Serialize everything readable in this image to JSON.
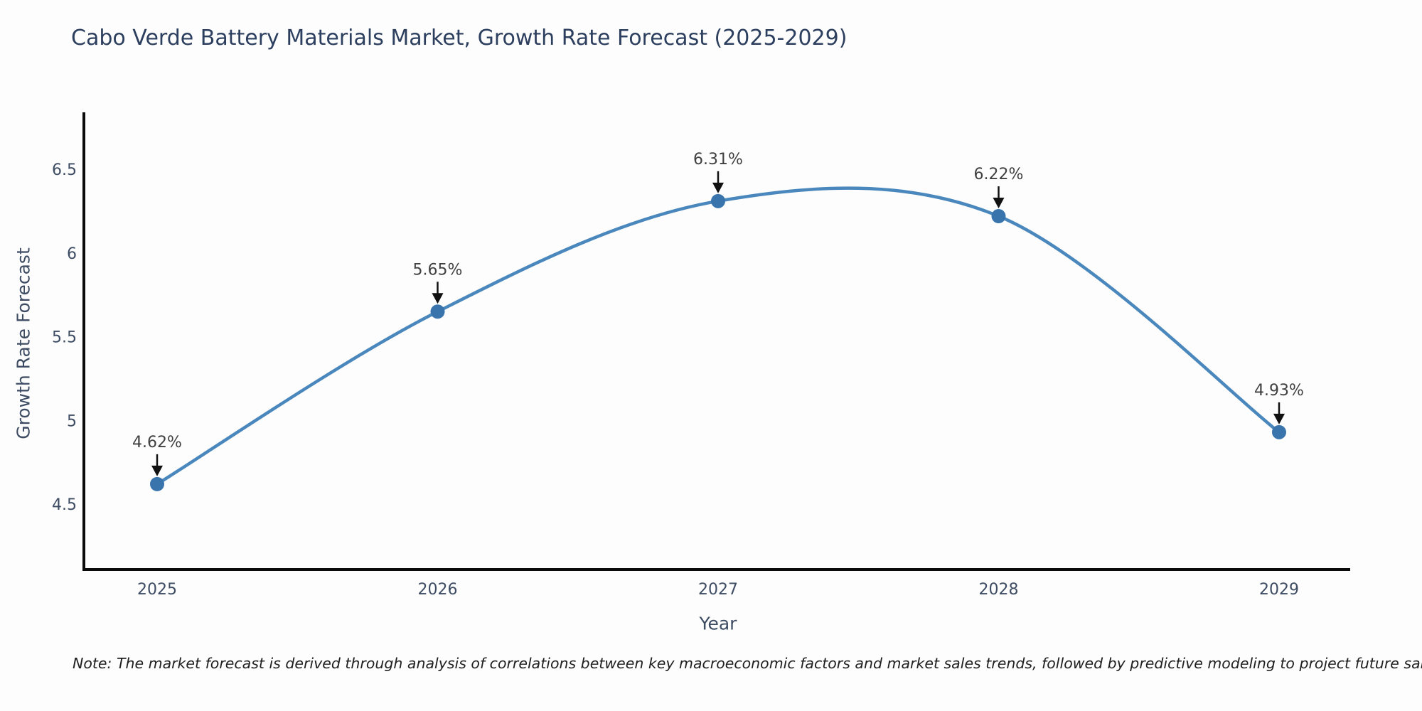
{
  "chart": {
    "title": "Cabo Verde Battery Materials Market, Growth Rate Forecast (2025-2029)",
    "xlabel": "Year",
    "ylabel": "Growth Rate Forecast",
    "note": "Note: The market forecast is derived through analysis of correlations between key macroeconomic factors and market sales trends, followed by predictive modeling to project future sales"
  },
  "chart_data": {
    "type": "line",
    "title": "Cabo Verde Battery Materials Market, Growth Rate Forecast (2025-2029)",
    "categories": [
      "2025",
      "2026",
      "2027",
      "2028",
      "2029"
    ],
    "values": [
      4.62,
      5.65,
      6.31,
      6.22,
      4.93
    ],
    "point_labels": [
      "4.62%",
      "5.65%",
      "6.31%",
      "6.22%",
      "4.93%"
    ],
    "series_name": "Growth Rate Forecast",
    "xlabel": "Year",
    "ylabel": "Growth Rate Forecast",
    "yticks": [
      4.5,
      5,
      5.5,
      6,
      6.5
    ],
    "ytick_labels": [
      "4.5",
      "5",
      "5.5",
      "6",
      "6.5"
    ],
    "ylim": [
      4.11,
      6.84
    ],
    "grid": false,
    "legend": "none",
    "curve": "smooth-spline",
    "annotations": "value labels with down arrows above each point",
    "colors": {
      "line": "#4a87bc",
      "marker": "#3a74ad",
      "axis": "#0a0a0a",
      "tick_text": "#3d4c63",
      "title_text": "#2d3f5e",
      "annotation_text": "#404040",
      "arrow": "#111111"
    },
    "note": "Note: The market forecast is derived through analysis of correlations between key macroeconomic factors and market sales trends, followed by predictive modeling to project future sales"
  }
}
